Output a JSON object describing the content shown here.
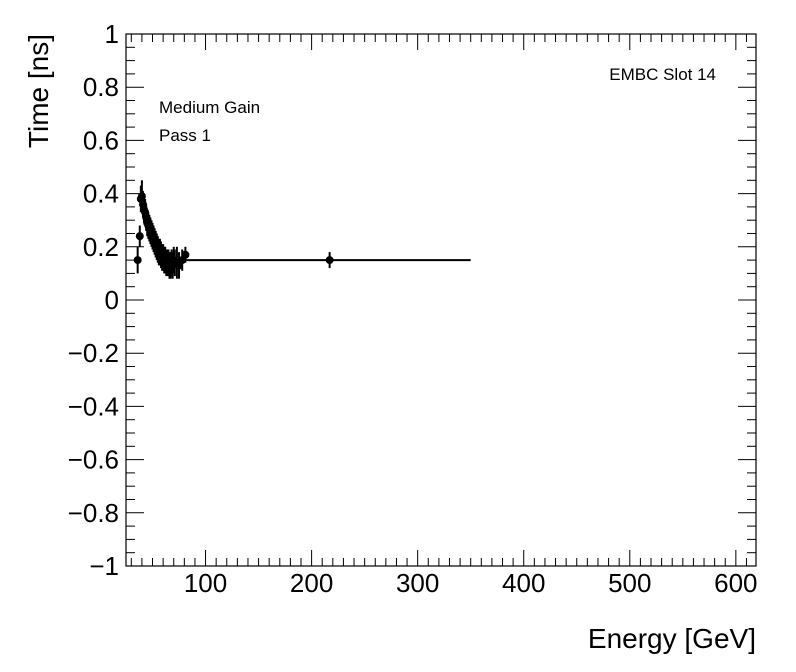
{
  "chart_data": {
    "type": "scatter",
    "title": "",
    "xlabel": "Energy [GeV]",
    "ylabel": "Time [ns]",
    "xlim": [
      25,
      619
    ],
    "ylim": [
      -1,
      1
    ],
    "x_ticks": [
      100,
      200,
      300,
      400,
      500,
      600
    ],
    "y_ticks": [
      -1,
      -0.8,
      -0.6,
      -0.4,
      -0.2,
      0,
      0.2,
      0.4,
      0.6,
      0.8,
      1
    ],
    "y_tick_labels": [
      "−1",
      "−0.8",
      "−0.6",
      "−0.4",
      "−0.2",
      "0",
      "0.2",
      "0.4",
      "0.6",
      "0.8",
      "1"
    ],
    "annotations": {
      "slot": "EMBC Slot 14",
      "gain": "Medium Gain",
      "pass": "Pass 1"
    },
    "grid": false,
    "series": [
      {
        "points": [
          {
            "x": 36,
            "y": 0.15,
            "yerr": 0.05
          },
          {
            "x": 38,
            "y": 0.24,
            "yerr": 0.04
          },
          {
            "x": 39,
            "y": 0.38,
            "yerr": 0.05
          },
          {
            "x": 40,
            "y": 0.39,
            "yerr": 0.06
          },
          {
            "x": 41,
            "y": 0.36,
            "yerr": 0.05
          },
          {
            "x": 42,
            "y": 0.34,
            "yerr": 0.05
          },
          {
            "x": 43,
            "y": 0.33,
            "yerr": 0.05
          },
          {
            "x": 44,
            "y": 0.31,
            "yerr": 0.05
          },
          {
            "x": 45,
            "y": 0.29,
            "yerr": 0.05
          },
          {
            "x": 46,
            "y": 0.28,
            "yerr": 0.05
          },
          {
            "x": 47,
            "y": 0.27,
            "yerr": 0.05
          },
          {
            "x": 48,
            "y": 0.26,
            "yerr": 0.05
          },
          {
            "x": 49,
            "y": 0.25,
            "yerr": 0.05
          },
          {
            "x": 50,
            "y": 0.24,
            "yerr": 0.05
          },
          {
            "x": 51,
            "y": 0.23,
            "yerr": 0.05
          },
          {
            "x": 52,
            "y": 0.22,
            "yerr": 0.05
          },
          {
            "x": 53,
            "y": 0.21,
            "yerr": 0.05
          },
          {
            "x": 54,
            "y": 0.2,
            "yerr": 0.05
          },
          {
            "x": 55,
            "y": 0.19,
            "yerr": 0.05
          },
          {
            "x": 56,
            "y": 0.18,
            "yerr": 0.05
          },
          {
            "x": 57,
            "y": 0.18,
            "yerr": 0.05
          },
          {
            "x": 58,
            "y": 0.17,
            "yerr": 0.05
          },
          {
            "x": 59,
            "y": 0.16,
            "yerr": 0.05
          },
          {
            "x": 60,
            "y": 0.16,
            "yerr": 0.05
          },
          {
            "x": 61,
            "y": 0.15,
            "yerr": 0.05
          },
          {
            "x": 62,
            "y": 0.15,
            "yerr": 0.05
          },
          {
            "x": 63,
            "y": 0.14,
            "yerr": 0.05
          },
          {
            "x": 64,
            "y": 0.14,
            "yerr": 0.05
          },
          {
            "x": 65,
            "y": 0.14,
            "yerr": 0.05
          },
          {
            "x": 66,
            "y": 0.13,
            "yerr": 0.05
          },
          {
            "x": 67,
            "y": 0.13,
            "yerr": 0.05
          },
          {
            "x": 68,
            "y": 0.14,
            "yerr": 0.05
          },
          {
            "x": 69,
            "y": 0.13,
            "yerr": 0.05
          },
          {
            "x": 70,
            "y": 0.15,
            "yerr": 0.05
          },
          {
            "x": 71,
            "y": 0.14,
            "yerr": 0.05
          },
          {
            "x": 73,
            "y": 0.14,
            "yerr": 0.06
          },
          {
            "x": 75,
            "y": 0.13,
            "yerr": 0.05
          },
          {
            "x": 78,
            "y": 0.15,
            "yerr": 0.04
          },
          {
            "x": 81,
            "y": 0.17,
            "yerr": 0.03
          },
          {
            "x": 217,
            "y": 0.15,
            "yerr": 0.03
          }
        ]
      }
    ],
    "fit_line": {
      "x": [
        80,
        350
      ],
      "y": [
        0.15,
        0.15
      ]
    }
  }
}
